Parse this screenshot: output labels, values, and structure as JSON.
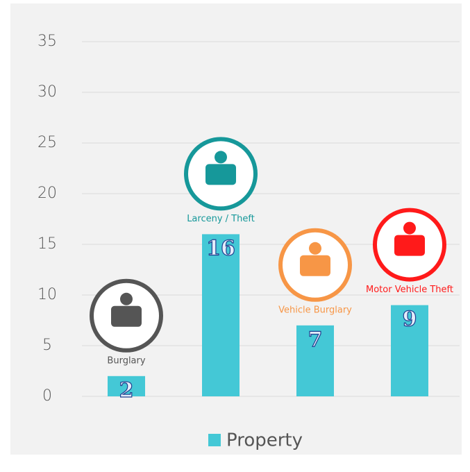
{
  "chart_data": {
    "type": "bar",
    "categories": [
      "Burglary",
      "Larceny / Theft",
      "Vehicle Burglary",
      "Motor Vehicle Theft"
    ],
    "category_colors": [
      "#555555",
      "#16989a",
      "#f79646",
      "#ff1a1a"
    ],
    "series": [
      {
        "name": "Property",
        "color": "#44c8d6",
        "values": [
          2,
          16,
          7,
          9
        ]
      }
    ],
    "ylim": [
      0,
      35
    ],
    "yticks": [
      0,
      5,
      10,
      15,
      20,
      25,
      30,
      35
    ],
    "grid": true,
    "legend": "bottom"
  }
}
